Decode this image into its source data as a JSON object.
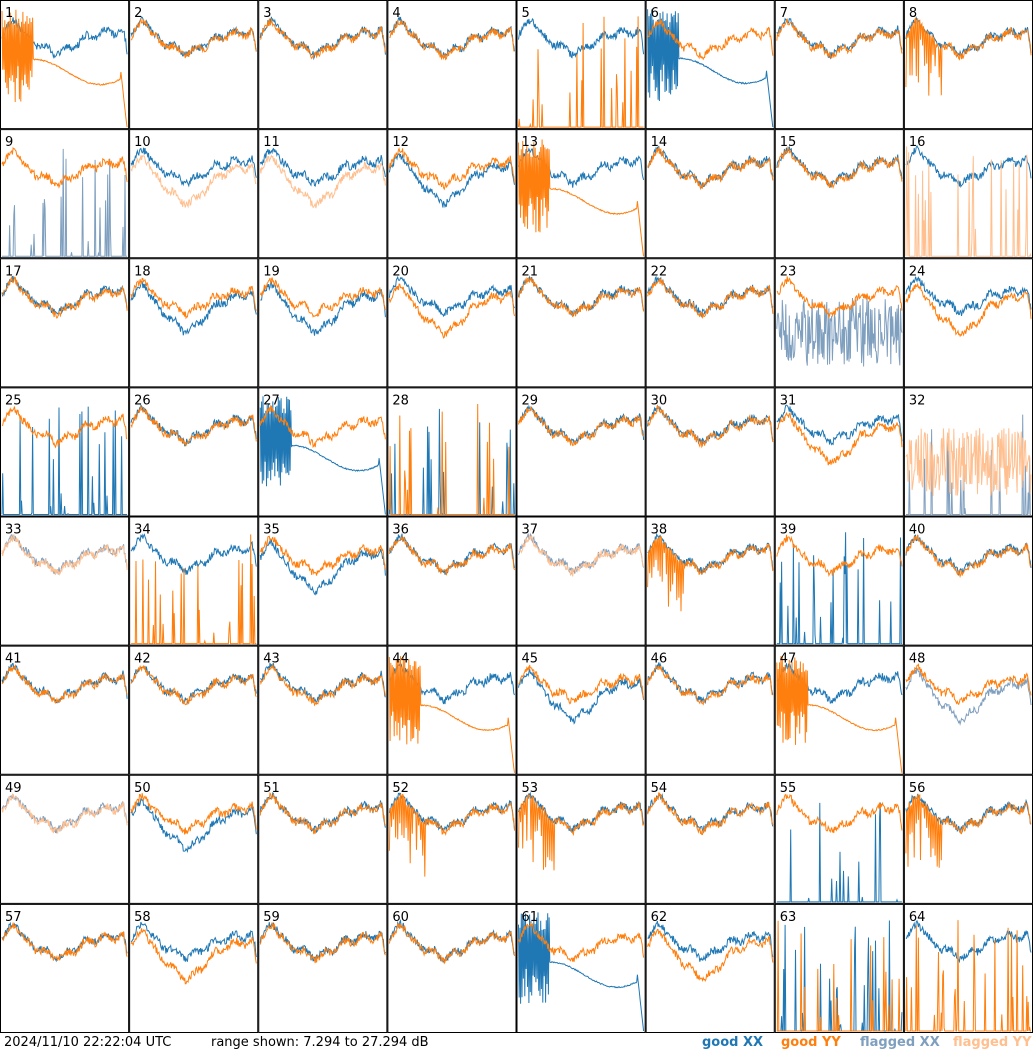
{
  "footer": {
    "timestamp": "2024/11/10 22:22:04 UTC",
    "range_text": "range shown: 7.294 to 27.294 dB"
  },
  "legend": [
    {
      "label": "good XX",
      "color": "#1f77b4"
    },
    {
      "label": "good YY",
      "color": "#ff7f0e"
    },
    {
      "label": "flagged XX",
      "color": "#7f9fbf"
    },
    {
      "label": "flagged YY",
      "color": "#ffbf8f"
    }
  ],
  "chart_data": {
    "type": "line",
    "grid": "8x8 small multiples",
    "y_range_db": [
      7.294,
      27.294
    ],
    "colors": {
      "good_xx": "#1f77b4",
      "good_yy": "#ff7f0e",
      "flagged_xx": "#7f9fbf",
      "flagged_yy": "#ffbf8f"
    },
    "panels": [
      {
        "id": "1",
        "xx": "good",
        "yy": "good",
        "xx_shape": "normal",
        "yy_shape": "spiky_decay"
      },
      {
        "id": "2",
        "xx": "good",
        "yy": "good",
        "xx_shape": "normal",
        "yy_shape": "normal"
      },
      {
        "id": "3",
        "xx": "good",
        "yy": "good",
        "xx_shape": "normal",
        "yy_shape": "normal"
      },
      {
        "id": "4",
        "xx": "good",
        "yy": "good",
        "xx_shape": "normal",
        "yy_shape": "normal"
      },
      {
        "id": "5",
        "xx": "good",
        "yy": "good",
        "xx_shape": "normal",
        "yy_shape": "dead_spikes"
      },
      {
        "id": "6",
        "xx": "good",
        "yy": "good",
        "xx_shape": "spiky_decay",
        "yy_shape": "normal"
      },
      {
        "id": "7",
        "xx": "good",
        "yy": "good",
        "xx_shape": "normal",
        "yy_shape": "normal"
      },
      {
        "id": "8",
        "xx": "good",
        "yy": "good",
        "xx_shape": "normal",
        "yy_shape": "spiky"
      },
      {
        "id": "9",
        "xx": "flagged",
        "yy": "good",
        "xx_shape": "dead_spikes",
        "yy_shape": "normal"
      },
      {
        "id": "10",
        "xx": "good",
        "yy": "flagged",
        "xx_shape": "normal",
        "yy_shape": "low"
      },
      {
        "id": "11",
        "xx": "good",
        "yy": "flagged",
        "xx_shape": "normal",
        "yy_shape": "low"
      },
      {
        "id": "12",
        "xx": "good",
        "yy": "good",
        "xx_shape": "low",
        "yy_shape": "normal"
      },
      {
        "id": "13",
        "xx": "good",
        "yy": "good",
        "xx_shape": "normal",
        "yy_shape": "spiky_decay"
      },
      {
        "id": "14",
        "xx": "good",
        "yy": "good",
        "xx_shape": "normal",
        "yy_shape": "normal"
      },
      {
        "id": "15",
        "xx": "good",
        "yy": "good",
        "xx_shape": "normal",
        "yy_shape": "normal"
      },
      {
        "id": "16",
        "xx": "good",
        "yy": "flagged",
        "xx_shape": "normal",
        "yy_shape": "dead_spikes"
      },
      {
        "id": "17",
        "xx": "good",
        "yy": "good",
        "xx_shape": "normal",
        "yy_shape": "normal"
      },
      {
        "id": "18",
        "xx": "good",
        "yy": "good",
        "xx_shape": "low",
        "yy_shape": "normal"
      },
      {
        "id": "19",
        "xx": "good",
        "yy": "good",
        "xx_shape": "low",
        "yy_shape": "normal"
      },
      {
        "id": "20",
        "xx": "good",
        "yy": "good",
        "xx_shape": "normal",
        "yy_shape": "low"
      },
      {
        "id": "21",
        "xx": "good",
        "yy": "good",
        "xx_shape": "normal",
        "yy_shape": "normal"
      },
      {
        "id": "22",
        "xx": "good",
        "yy": "good",
        "xx_shape": "normal",
        "yy_shape": "normal"
      },
      {
        "id": "23",
        "xx": "flagged",
        "yy": "good",
        "xx_shape": "noise",
        "yy_shape": "normal"
      },
      {
        "id": "24",
        "xx": "good",
        "yy": "good",
        "xx_shape": "normal",
        "yy_shape": "low"
      },
      {
        "id": "25",
        "xx": "good",
        "yy": "good",
        "xx_shape": "dead_spikes",
        "yy_shape": "normal"
      },
      {
        "id": "26",
        "xx": "good",
        "yy": "good",
        "xx_shape": "normal",
        "yy_shape": "normal"
      },
      {
        "id": "27",
        "xx": "good",
        "yy": "good",
        "xx_shape": "spiky_decay",
        "yy_shape": "normal"
      },
      {
        "id": "28",
        "xx": "good",
        "yy": "good",
        "xx_shape": "dead_spikes",
        "yy_shape": "dead_spikes"
      },
      {
        "id": "29",
        "xx": "good",
        "yy": "good",
        "xx_shape": "normal",
        "yy_shape": "normal"
      },
      {
        "id": "30",
        "xx": "good",
        "yy": "good",
        "xx_shape": "normal",
        "yy_shape": "normal"
      },
      {
        "id": "31",
        "xx": "good",
        "yy": "good",
        "xx_shape": "normal",
        "yy_shape": "low"
      },
      {
        "id": "32",
        "xx": "flagged",
        "yy": "flagged",
        "xx_shape": "dead_spikes",
        "yy_shape": "noise"
      },
      {
        "id": "33",
        "xx": "flagged",
        "yy": "flagged",
        "xx_shape": "normal",
        "yy_shape": "normal"
      },
      {
        "id": "34",
        "xx": "good",
        "yy": "good",
        "xx_shape": "normal",
        "yy_shape": "dead_spikes"
      },
      {
        "id": "35",
        "xx": "good",
        "yy": "good",
        "xx_shape": "low",
        "yy_shape": "normal"
      },
      {
        "id": "36",
        "xx": "good",
        "yy": "good",
        "xx_shape": "normal",
        "yy_shape": "normal"
      },
      {
        "id": "37",
        "xx": "flagged",
        "yy": "flagged",
        "xx_shape": "normal",
        "yy_shape": "normal"
      },
      {
        "id": "38",
        "xx": "good",
        "yy": "good",
        "xx_shape": "normal",
        "yy_shape": "spiky"
      },
      {
        "id": "39",
        "xx": "good",
        "yy": "good",
        "xx_shape": "dead_spikes",
        "yy_shape": "normal"
      },
      {
        "id": "40",
        "xx": "good",
        "yy": "good",
        "xx_shape": "normal",
        "yy_shape": "normal"
      },
      {
        "id": "41",
        "xx": "good",
        "yy": "good",
        "xx_shape": "normal",
        "yy_shape": "normal"
      },
      {
        "id": "42",
        "xx": "good",
        "yy": "good",
        "xx_shape": "normal",
        "yy_shape": "normal"
      },
      {
        "id": "43",
        "xx": "good",
        "yy": "good",
        "xx_shape": "normal",
        "yy_shape": "normal"
      },
      {
        "id": "44",
        "xx": "good",
        "yy": "good",
        "xx_shape": "normal",
        "yy_shape": "spiky_decay"
      },
      {
        "id": "45",
        "xx": "good",
        "yy": "good",
        "xx_shape": "low",
        "yy_shape": "normal"
      },
      {
        "id": "46",
        "xx": "good",
        "yy": "good",
        "xx_shape": "normal",
        "yy_shape": "normal"
      },
      {
        "id": "47",
        "xx": "good",
        "yy": "good",
        "xx_shape": "normal",
        "yy_shape": "spiky_decay"
      },
      {
        "id": "48",
        "xx": "flagged",
        "yy": "good",
        "xx_shape": "low",
        "yy_shape": "normal"
      },
      {
        "id": "49",
        "xx": "flagged",
        "yy": "flagged",
        "xx_shape": "normal",
        "yy_shape": "normal"
      },
      {
        "id": "50",
        "xx": "good",
        "yy": "good",
        "xx_shape": "low",
        "yy_shape": "normal"
      },
      {
        "id": "51",
        "xx": "good",
        "yy": "good",
        "xx_shape": "normal",
        "yy_shape": "normal"
      },
      {
        "id": "52",
        "xx": "good",
        "yy": "good",
        "xx_shape": "normal",
        "yy_shape": "spiky"
      },
      {
        "id": "53",
        "xx": "good",
        "yy": "good",
        "xx_shape": "normal",
        "yy_shape": "spiky"
      },
      {
        "id": "54",
        "xx": "good",
        "yy": "good",
        "xx_shape": "normal",
        "yy_shape": "normal"
      },
      {
        "id": "55",
        "xx": "good",
        "yy": "good",
        "xx_shape": "dead_spikes",
        "yy_shape": "normal"
      },
      {
        "id": "56",
        "xx": "good",
        "yy": "good",
        "xx_shape": "normal",
        "yy_shape": "spiky"
      },
      {
        "id": "57",
        "xx": "good",
        "yy": "good",
        "xx_shape": "normal",
        "yy_shape": "normal"
      },
      {
        "id": "58",
        "xx": "good",
        "yy": "good",
        "xx_shape": "normal",
        "yy_shape": "low"
      },
      {
        "id": "59",
        "xx": "good",
        "yy": "good",
        "xx_shape": "normal",
        "yy_shape": "normal"
      },
      {
        "id": "60",
        "xx": "good",
        "yy": "good",
        "xx_shape": "normal",
        "yy_shape": "normal"
      },
      {
        "id": "61",
        "xx": "good",
        "yy": "good",
        "xx_shape": "spiky_decay",
        "yy_shape": "normal"
      },
      {
        "id": "62",
        "xx": "good",
        "yy": "good",
        "xx_shape": "normal",
        "yy_shape": "low"
      },
      {
        "id": "63",
        "xx": "good",
        "yy": "good",
        "xx_shape": "dead_spikes",
        "yy_shape": "dead_spikes"
      },
      {
        "id": "64",
        "xx": "good",
        "yy": "good",
        "xx_shape": "normal",
        "yy_shape": "dead_spikes"
      }
    ]
  }
}
